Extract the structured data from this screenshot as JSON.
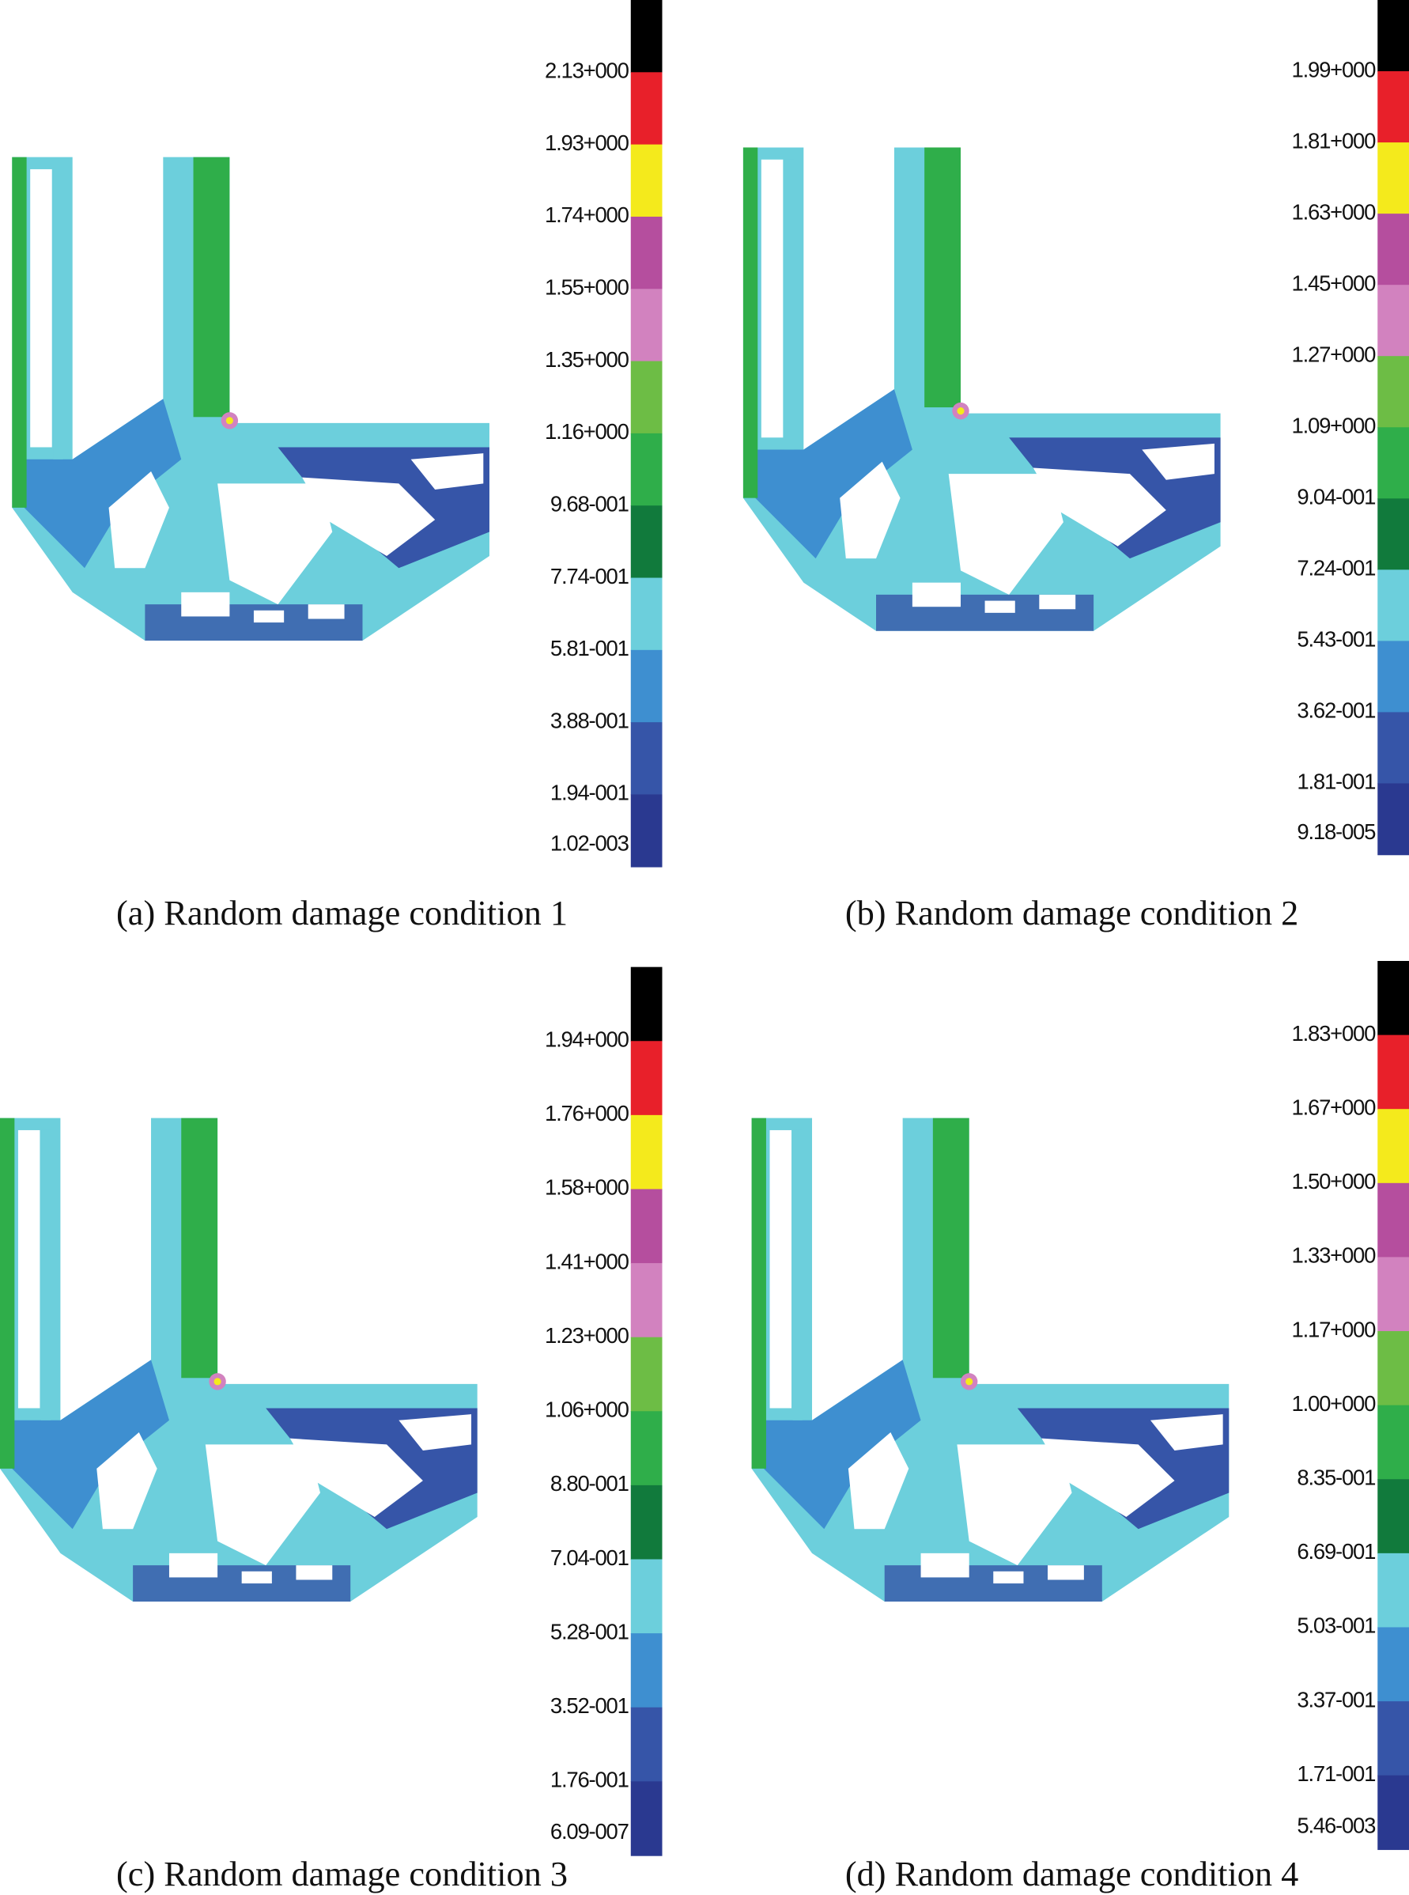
{
  "colormap": [
    "#000000",
    "#e8202a",
    "#f4ea1c",
    "#b54e9e",
    "#d282bf",
    "#6dbd45",
    "#2fae4a",
    "#117a3c",
    "#6ccfdc",
    "#3e8fd0",
    "#3655a8",
    "#2a3990"
  ],
  "panels": [
    {
      "caption": "(a) Random damage condition 1",
      "legend": [
        "2.13+000",
        "1.93+000",
        "1.74+000",
        "1.55+000",
        "1.35+000",
        "1.16+000",
        "9.68-001",
        "7.74-001",
        "5.81-001",
        "3.88-001",
        "1.94-001",
        "1.02-003"
      ]
    },
    {
      "caption": "(b) Random damage condition 2",
      "legend": [
        "1.99+000",
        "1.81+000",
        "1.63+000",
        "1.45+000",
        "1.27+000",
        "1.09+000",
        "9.04-001",
        "7.24-001",
        "5.43-001",
        "3.62-001",
        "1.81-001",
        "9.18-005"
      ]
    },
    {
      "caption": "(c) Random damage condition 3",
      "legend": [
        "1.94+000",
        "1.76+000",
        "1.58+000",
        "1.41+000",
        "1.23+000",
        "1.06+000",
        "8.80-001",
        "7.04-001",
        "5.28-001",
        "3.52-001",
        "1.76-001",
        "6.09-007"
      ]
    },
    {
      "caption": "(d) Random damage condition 4",
      "legend": [
        "1.83+000",
        "1.67+000",
        "1.50+000",
        "1.33+000",
        "1.17+000",
        "1.00+000",
        "8.35-001",
        "6.69-001",
        "5.03-001",
        "3.37-001",
        "1.71-001",
        "5.46-003"
      ]
    }
  ]
}
